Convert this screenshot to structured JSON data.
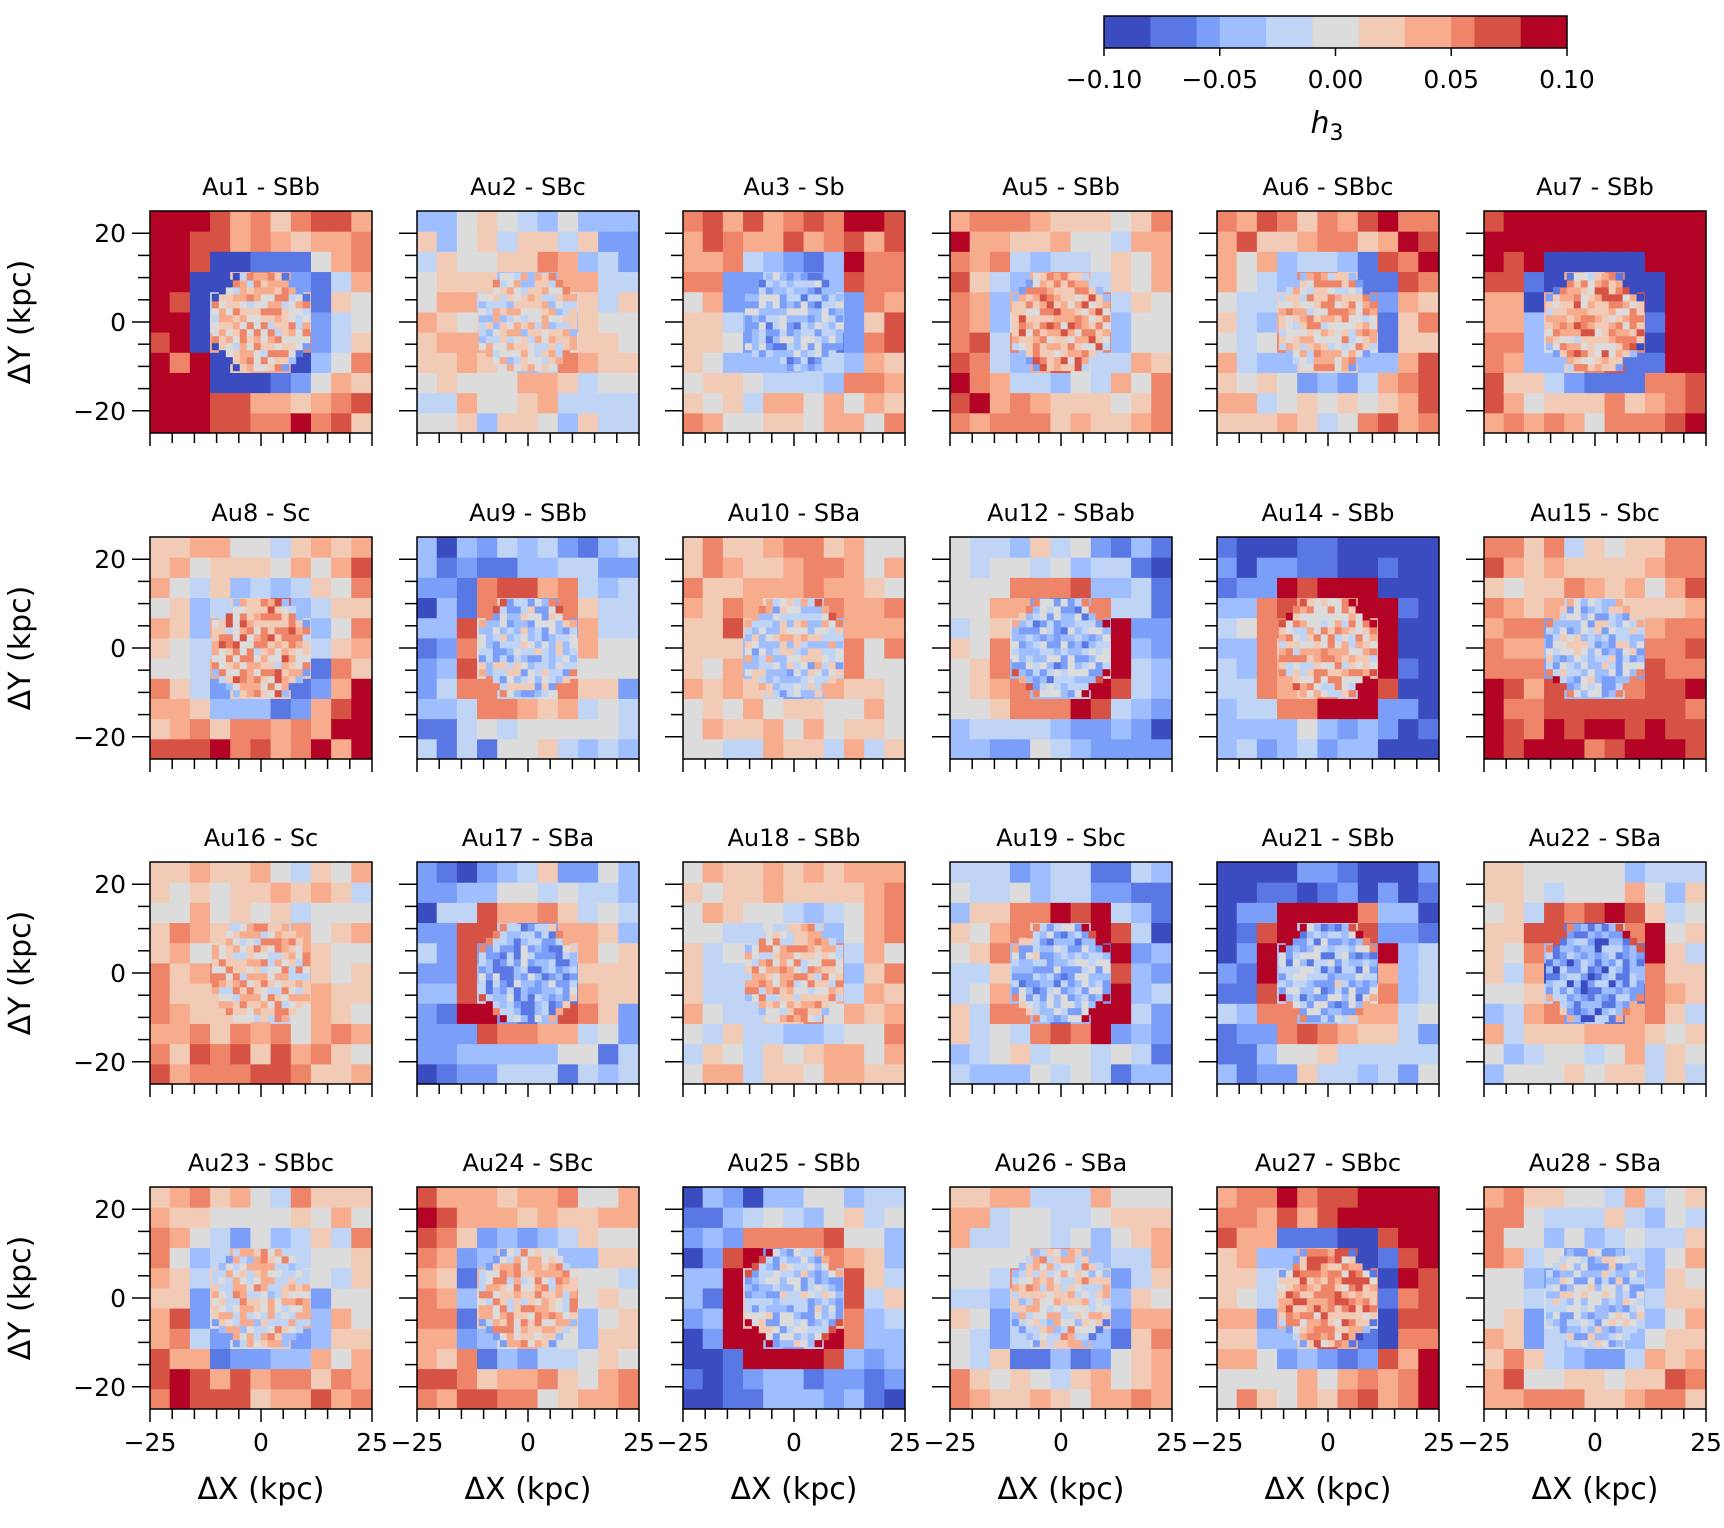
{
  "colorbar": {
    "label": "h",
    "label_sub": "3",
    "ticks": [
      "−0.10",
      "−0.05",
      "0.00",
      "0.05",
      "0.10"
    ],
    "range": [
      -0.1,
      0.1
    ],
    "colors": [
      "#3b4cc0",
      "#5a78e4",
      "#7b9ff9",
      "#9ebeff",
      "#c0d4f5",
      "#dddcdc",
      "#f2cbb7",
      "#f7ac8e",
      "#ee8468",
      "#d65244",
      "#b40426"
    ]
  },
  "axis_labels": {
    "x": "ΔX (kpc)",
    "y": "ΔY (kpc)"
  },
  "chart_data": {
    "type": "heatmap",
    "value_name": "h3",
    "xlim": [
      -25,
      25
    ],
    "ylim": [
      -25,
      25
    ],
    "x_ticks": [
      "−25",
      "0",
      "25"
    ],
    "y_ticks": [
      "20",
      "0",
      "−20"
    ],
    "panels": [
      {
        "title": "Au1 - SBb",
        "pattern": {
          "base": 0.0,
          "inner": 0.02,
          "ring": -0.1,
          "outer": 0.09,
          "angle": 180
        }
      },
      {
        "title": "Au2 - SBc",
        "pattern": {
          "base": 0.03,
          "inner": 0.0,
          "ring": 0.03,
          "outer": -0.02,
          "angle": 45
        }
      },
      {
        "title": "Au3 - Sb",
        "pattern": {
          "base": 0.02,
          "inner": -0.03,
          "ring": -0.04,
          "outer": 0.05,
          "angle": 60
        }
      },
      {
        "title": "Au5 - SBb",
        "pattern": {
          "base": 0.0,
          "inner": 0.04,
          "ring": -0.03,
          "outer": 0.05,
          "angle": 200
        }
      },
      {
        "title": "Au6 - SBbc",
        "pattern": {
          "base": -0.02,
          "inner": 0.02,
          "ring": -0.04,
          "outer": 0.06,
          "angle": 30
        }
      },
      {
        "title": "Au7 - SBb",
        "pattern": {
          "base": 0.04,
          "inner": 0.03,
          "ring": -0.08,
          "outer": 0.1,
          "angle": 60
        }
      },
      {
        "title": "Au8 - Sc",
        "pattern": {
          "base": 0.0,
          "inner": 0.03,
          "ring": -0.04,
          "outer": 0.05,
          "angle": 300
        }
      },
      {
        "title": "Au9 - SBb",
        "pattern": {
          "base": 0.0,
          "inner": -0.02,
          "ring": 0.05,
          "outer": -0.05,
          "angle": 150
        }
      },
      {
        "title": "Au10 - SBa",
        "pattern": {
          "base": 0.03,
          "inner": -0.01,
          "ring": 0.04,
          "outer": 0.02,
          "angle": 90
        }
      },
      {
        "title": "Au12 - SBab",
        "pattern": {
          "base": 0.02,
          "inner": -0.03,
          "ring": 0.07,
          "outer": -0.05,
          "angle": 340
        }
      },
      {
        "title": "Au14 - SBb",
        "pattern": {
          "base": -0.03,
          "inner": 0.02,
          "ring": 0.09,
          "outer": -0.08,
          "angle": 30
        }
      },
      {
        "title": "Au15 - Sbc",
        "pattern": {
          "base": 0.02,
          "inner": -0.02,
          "ring": 0.05,
          "outer": 0.07,
          "angle": 270
        }
      },
      {
        "title": "Au16 - Sc",
        "pattern": {
          "base": 0.03,
          "inner": 0.02,
          "ring": 0.02,
          "outer": 0.03,
          "angle": 250
        }
      },
      {
        "title": "Au17 - SBa",
        "pattern": {
          "base": 0.02,
          "inner": -0.04,
          "ring": 0.06,
          "outer": -0.06,
          "angle": 200
        }
      },
      {
        "title": "Au18 - SBb",
        "pattern": {
          "base": 0.0,
          "inner": 0.02,
          "ring": -0.02,
          "outer": 0.03,
          "angle": 20
        }
      },
      {
        "title": "Au19 - Sbc",
        "pattern": {
          "base": 0.0,
          "inner": -0.03,
          "ring": 0.07,
          "outer": -0.04,
          "angle": 10
        }
      },
      {
        "title": "Au21 - SBb",
        "pattern": {
          "base": 0.0,
          "inner": -0.03,
          "ring": 0.08,
          "outer": -0.08,
          "angle": 120
        }
      },
      {
        "title": "Au22 - SBa",
        "pattern": {
          "base": 0.01,
          "inner": -0.05,
          "ring": 0.06,
          "outer": 0.0,
          "angle": 50
        }
      },
      {
        "title": "Au23 - SBbc",
        "pattern": {
          "base": 0.0,
          "inner": 0.01,
          "ring": -0.04,
          "outer": 0.05,
          "angle": 240
        }
      },
      {
        "title": "Au24 - SBc",
        "pattern": {
          "base": 0.0,
          "inner": 0.02,
          "ring": -0.04,
          "outer": 0.05,
          "angle": 190
        }
      },
      {
        "title": "Au25 - SBb",
        "pattern": {
          "base": 0.0,
          "inner": -0.02,
          "ring": 0.09,
          "outer": -0.07,
          "angle": 220
        }
      },
      {
        "title": "Au26 - SBa",
        "pattern": {
          "base": -0.03,
          "inner": 0.01,
          "ring": -0.04,
          "outer": 0.03,
          "angle": 300
        }
      },
      {
        "title": "Au27 - SBbc",
        "pattern": {
          "base": 0.01,
          "inner": 0.04,
          "ring": -0.07,
          "outer": 0.08,
          "angle": 40
        }
      },
      {
        "title": "Au28 - SBa",
        "pattern": {
          "base": -0.02,
          "inner": -0.02,
          "ring": -0.03,
          "outer": 0.04,
          "angle": 250
        }
      }
    ]
  }
}
